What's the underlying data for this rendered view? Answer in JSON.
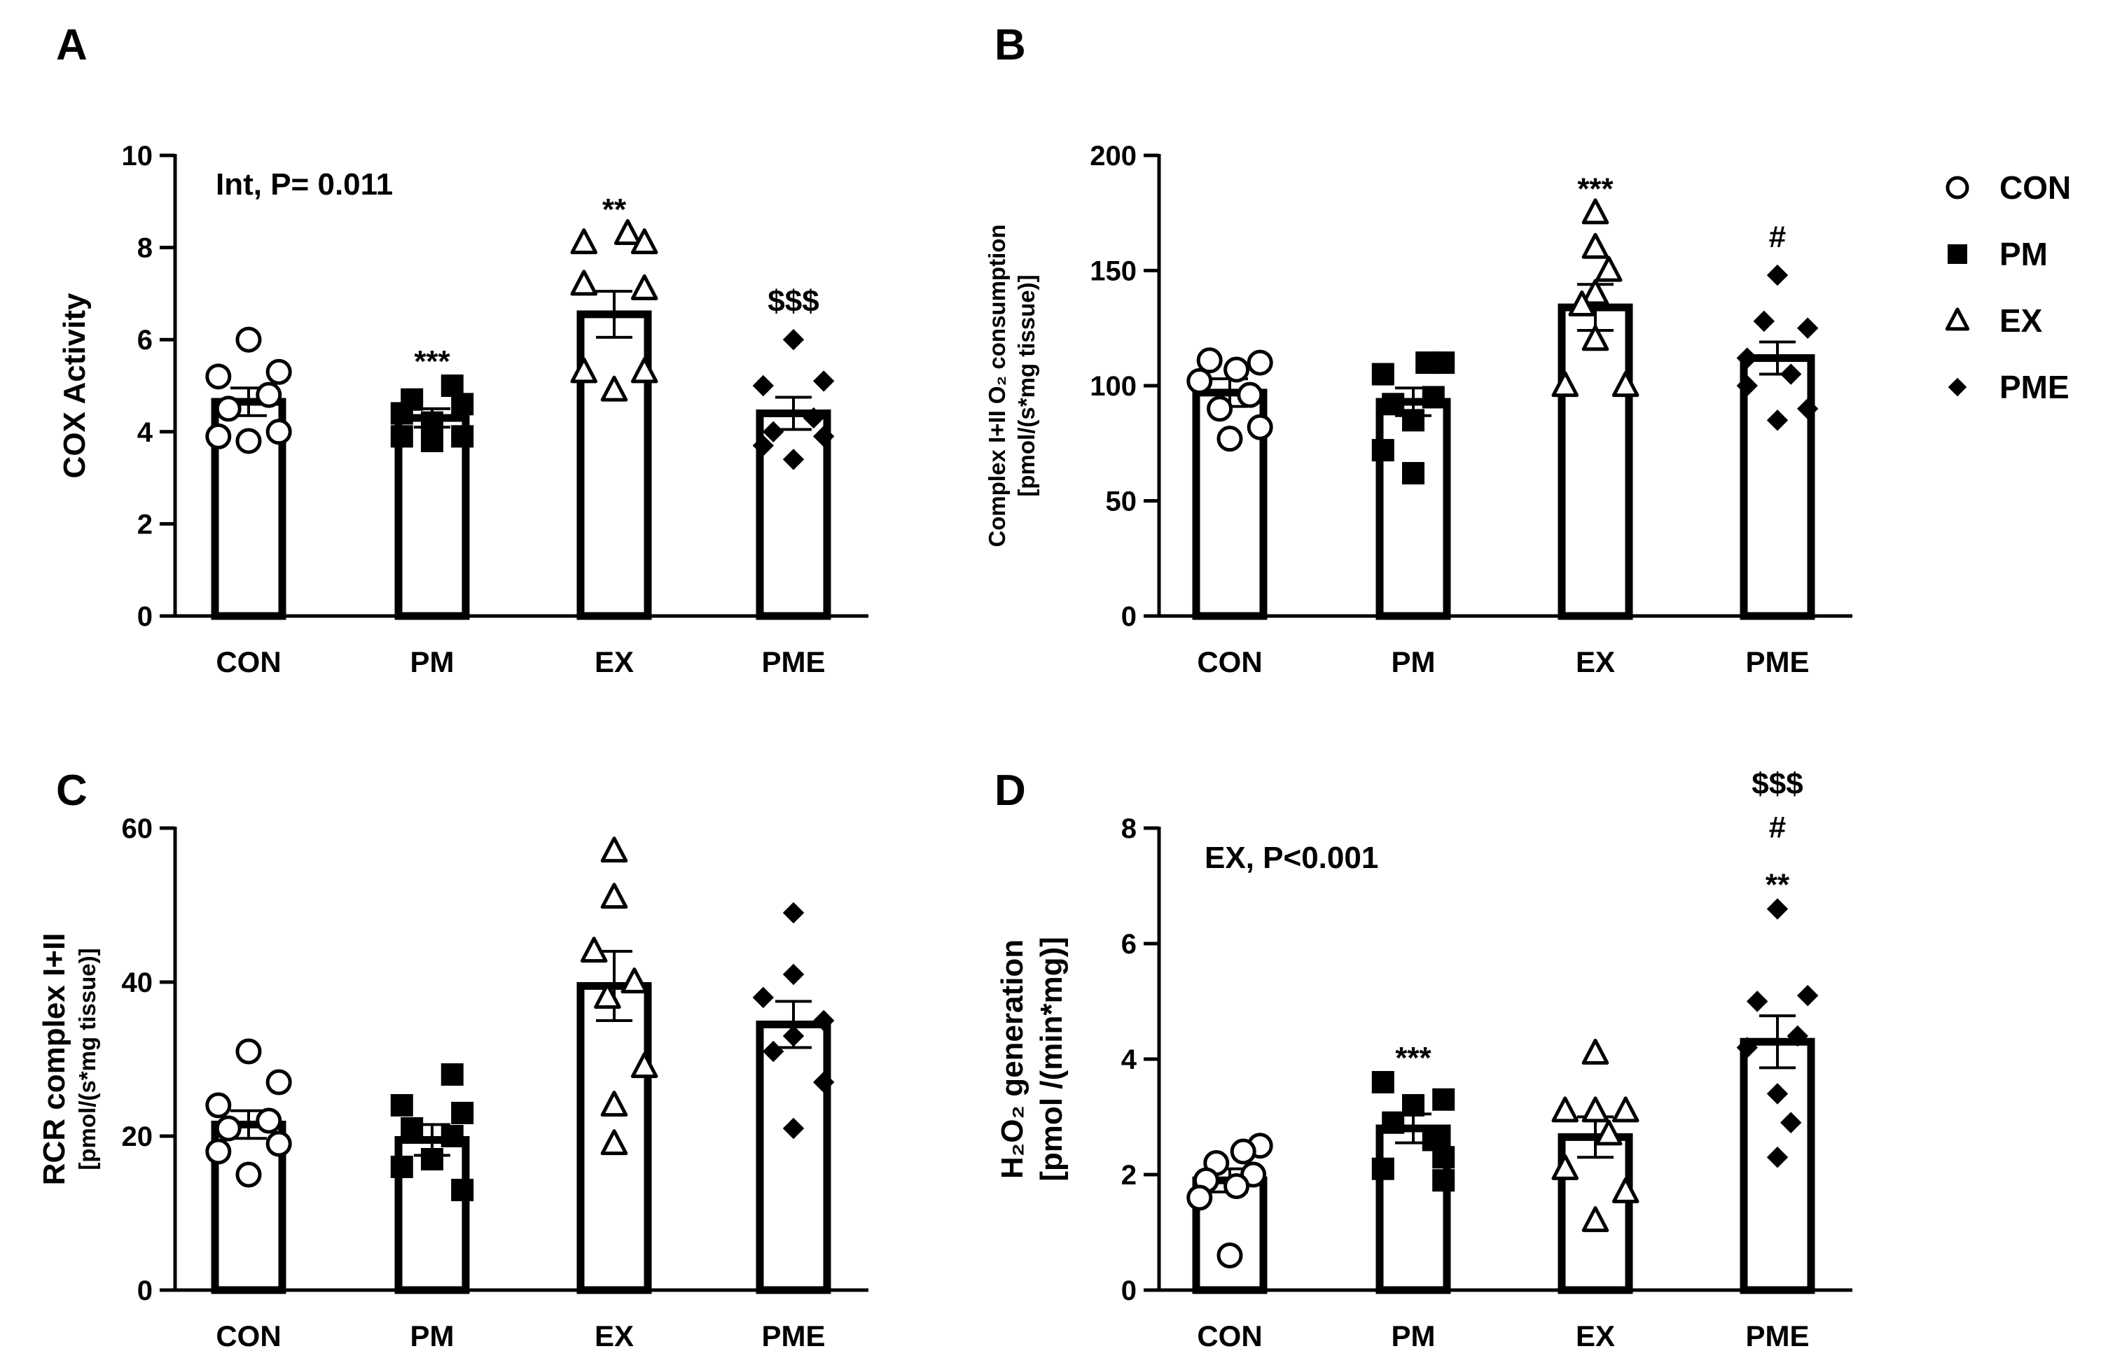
{
  "figure": {
    "legend": [
      {
        "name": "CON",
        "marker": "open-circle"
      },
      {
        "name": "PM",
        "marker": "filled-square"
      },
      {
        "name": "EX",
        "marker": "open-triangle"
      },
      {
        "name": "PME",
        "marker": "filled-diamond"
      }
    ]
  },
  "chart_data": [
    {
      "panel": "A",
      "type": "bar",
      "categories": [
        "CON",
        "PM",
        "EX",
        "PME"
      ],
      "values": [
        4.65,
        4.3,
        6.55,
        4.4
      ],
      "sem": [
        0.3,
        0.2,
        0.5,
        0.35
      ],
      "points": [
        [
          6.0,
          5.3,
          5.2,
          4.8,
          4.5,
          4.0,
          3.9,
          3.8
        ],
        [
          5.0,
          4.7,
          4.6,
          4.4,
          4.2,
          3.9,
          3.9,
          3.8
        ],
        [
          8.3,
          8.1,
          8.1,
          7.2,
          7.1,
          5.3,
          5.3,
          4.9
        ],
        [
          6.0,
          5.1,
          5.0,
          4.3,
          4.0,
          3.9,
          3.7,
          3.4
        ]
      ],
      "point_offsets": [
        [
          0,
          0.45,
          -0.45,
          0.3,
          -0.3,
          0.45,
          -0.45,
          0
        ],
        [
          0.3,
          -0.3,
          0.45,
          -0.45,
          0,
          0.45,
          -0.45,
          0
        ],
        [
          0.2,
          -0.45,
          0.45,
          -0.45,
          0.45,
          -0.45,
          0.45,
          0
        ],
        [
          0,
          0.45,
          -0.45,
          0.3,
          -0.3,
          0.45,
          -0.45,
          0
        ]
      ],
      "significance": [
        "",
        "***",
        "**",
        "$$$"
      ],
      "annotation": "Int, P= 0.011",
      "ylabel": "COX Activity",
      "ylim": [
        0,
        10
      ],
      "yticks": [
        0,
        2,
        4,
        6,
        8,
        10
      ]
    },
    {
      "panel": "B",
      "type": "bar",
      "categories": [
        "CON",
        "PM",
        "EX",
        "PME"
      ],
      "values": [
        97,
        93,
        134,
        112
      ],
      "sem": [
        6,
        6,
        10,
        7
      ],
      "points": [
        [
          111,
          110,
          107,
          102,
          96,
          90,
          82,
          77
        ],
        [
          110,
          110,
          105,
          95,
          92,
          85,
          72,
          62
        ],
        [
          175,
          160,
          150,
          140,
          135,
          120,
          100,
          100
        ],
        [
          148,
          128,
          125,
          112,
          105,
          100,
          90,
          85
        ]
      ],
      "point_offsets": [
        [
          -0.3,
          0.45,
          0.1,
          -0.45,
          0.3,
          -0.15,
          0.45,
          0
        ],
        [
          0.2,
          0.45,
          -0.45,
          0.3,
          -0.3,
          0,
          -0.45,
          0
        ],
        [
          0,
          0,
          0.2,
          0,
          -0.2,
          0,
          -0.45,
          0.45
        ],
        [
          0,
          -0.2,
          0.45,
          -0.45,
          0.2,
          -0.45,
          0.45,
          0
        ]
      ],
      "significance": [
        "",
        "",
        "***",
        "#"
      ],
      "annotation": "",
      "ylabel": "Complex I+II O₂ consumption",
      "ylabel2": "[pmol/(s*mg tissue)]",
      "ylim": [
        0,
        200
      ],
      "yticks": [
        0,
        50,
        100,
        150,
        200
      ]
    },
    {
      "panel": "C",
      "type": "bar",
      "categories": [
        "CON",
        "PM",
        "EX",
        "PME"
      ],
      "values": [
        21.5,
        19.5,
        39.5,
        34.5
      ],
      "sem": [
        1.8,
        2,
        4.5,
        3
      ],
      "points": [
        [
          31,
          27,
          24,
          22,
          21,
          19,
          18,
          15
        ],
        [
          28,
          24,
          23,
          21,
          20,
          17,
          16,
          13
        ],
        [
          57,
          51,
          44,
          40,
          38,
          29,
          24,
          19
        ],
        [
          49,
          41,
          38,
          35,
          33,
          31,
          27,
          21
        ]
      ],
      "point_offsets": [
        [
          0,
          0.45,
          -0.45,
          0.3,
          -0.3,
          0.45,
          -0.45,
          0
        ],
        [
          0.3,
          -0.45,
          0.45,
          -0.3,
          0.3,
          0,
          -0.45,
          0.45
        ],
        [
          0,
          0,
          -0.3,
          0.3,
          -0.1,
          0.45,
          0,
          0
        ],
        [
          0,
          0,
          -0.45,
          0.45,
          0,
          -0.3,
          0.45,
          0
        ]
      ],
      "significance": [
        "",
        "",
        "",
        ""
      ],
      "annotation": "",
      "ylabel": "RCR complex I+II",
      "ylabel2": "[pmol/(s*mg tissue)]",
      "ylim": [
        0,
        60
      ],
      "yticks": [
        0,
        20,
        40,
        60
      ]
    },
    {
      "panel": "D",
      "type": "bar",
      "categories": [
        "CON",
        "PM",
        "EX",
        "PME"
      ],
      "values": [
        1.9,
        2.8,
        2.65,
        4.3
      ],
      "sem": [
        0.2,
        0.25,
        0.35,
        0.45
      ],
      "points": [
        [
          2.5,
          2.4,
          2.2,
          2.0,
          1.9,
          1.8,
          1.6,
          0.6
        ],
        [
          3.6,
          3.3,
          3.2,
          2.9,
          2.6,
          2.3,
          2.1,
          1.9
        ],
        [
          4.1,
          3.1,
          3.1,
          3.1,
          2.7,
          2.1,
          1.7,
          1.2
        ],
        [
          6.6,
          5.1,
          5.0,
          4.4,
          4.2,
          3.4,
          2.9,
          2.3
        ]
      ],
      "point_offsets": [
        [
          0.45,
          0.2,
          -0.2,
          0.35,
          -0.35,
          0.1,
          -0.45,
          0
        ],
        [
          -0.45,
          0.45,
          0,
          -0.3,
          0.3,
          0.45,
          -0.45,
          0.45
        ],
        [
          0,
          -0.45,
          0.45,
          0,
          0.2,
          -0.45,
          0.45,
          0
        ],
        [
          0,
          0.45,
          -0.3,
          0.3,
          -0.45,
          0,
          0.2,
          0
        ]
      ],
      "significance": [
        "",
        "***",
        "",
        "$$$\n#\n**"
      ],
      "annotation": "EX,  P<0.001",
      "ylabel": "H₂O₂ generation",
      "ylabel2": "[pmol /(min*mg)]",
      "ylim": [
        0,
        8
      ],
      "yticks": [
        0,
        2,
        4,
        6,
        8
      ]
    }
  ]
}
